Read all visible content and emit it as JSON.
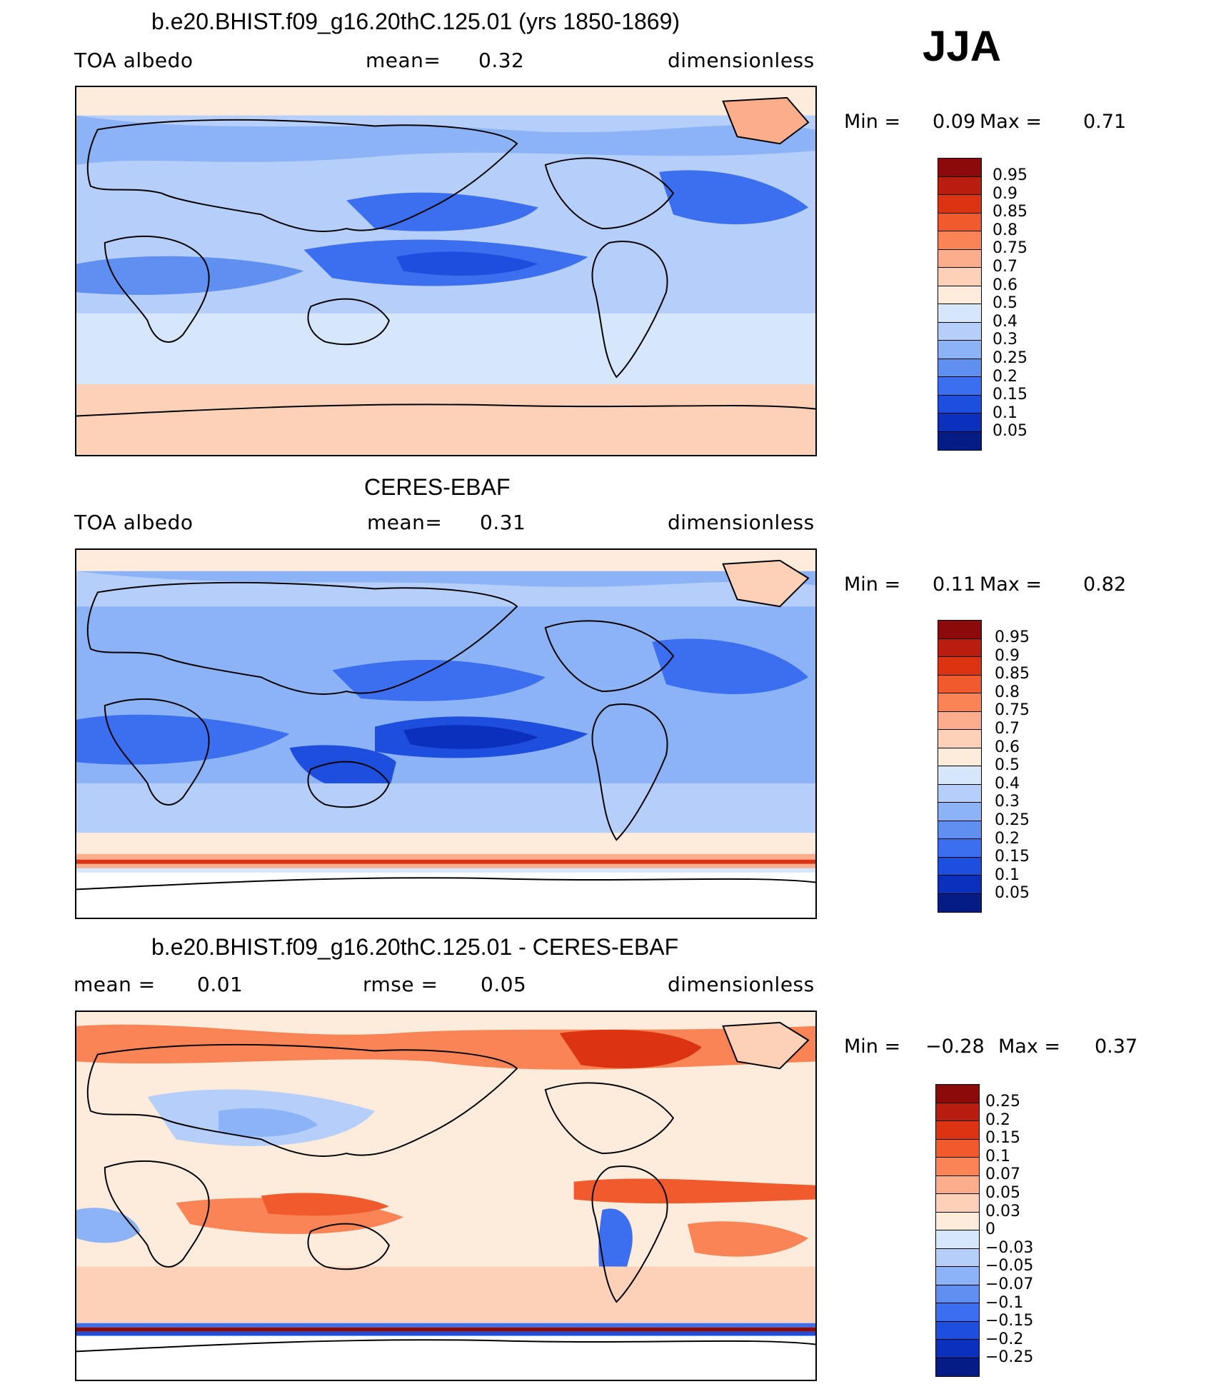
{
  "season": "JJA",
  "panels": [
    {
      "title": "b.e20.BHIST.f09_g16.20thC.125.01 (yrs 1850-1869)",
      "left_label": "TOA albedo",
      "mid_label": "mean=",
      "mid_value": "0.32",
      "right_label": "dimensionless",
      "min_label": "Min =",
      "min_value": "0.09",
      "max_label": "Max =",
      "max_value": "0.71"
    },
    {
      "title": "CERES-EBAF",
      "left_label": "TOA albedo",
      "mid_label": "mean=",
      "mid_value": "0.31",
      "right_label": "dimensionless",
      "min_label": "Min =",
      "min_value": "0.11",
      "max_label": "Max =",
      "max_value": "0.82"
    },
    {
      "title": "b.e20.BHIST.f09_g16.20thC.125.01 - CERES-EBAF",
      "left_label": "mean =",
      "left_value": "0.01",
      "mid_label": "rmse =",
      "mid_value": "0.05",
      "right_label": "dimensionless",
      "min_label": "Min =",
      "min_value": "−0.28",
      "max_label": "Max =",
      "max_value": "0.37"
    }
  ],
  "colorbars": {
    "albedo": {
      "levels": [
        "0.95",
        "0.9",
        "0.85",
        "0.8",
        "0.75",
        "0.7",
        "0.6",
        "0.5",
        "0.4",
        "0.3",
        "0.25",
        "0.2",
        "0.15",
        "0.1",
        "0.05"
      ],
      "colors": [
        "#8c0a0a",
        "#b81d0f",
        "#dc3312",
        "#f05a2d",
        "#fa8455",
        "#fcae8c",
        "#fdd0b8",
        "#fdebdc",
        "#d6e6fb",
        "#b6cffa",
        "#8db3f7",
        "#5f8ff1",
        "#3c6ff0",
        "#1d4ede",
        "#0b31bc",
        "#051b86"
      ]
    },
    "difference": {
      "levels": [
        "0.25",
        "0.2",
        "0.15",
        "0.1",
        "0.07",
        "0.05",
        "0.03",
        "0",
        "−0.03",
        "−0.05",
        "−0.07",
        "−0.1",
        "−0.15",
        "−0.2",
        "−0.25"
      ],
      "colors": [
        "#8c0a0a",
        "#b81d0f",
        "#dc3312",
        "#f05a2d",
        "#fa8455",
        "#fcae8c",
        "#fdd0b8",
        "#fdebdc",
        "#d6e6fb",
        "#b6cffa",
        "#8db3f7",
        "#5f8ff1",
        "#3c6ff0",
        "#1d4ede",
        "#0b31bc",
        "#051b86"
      ]
    }
  }
}
